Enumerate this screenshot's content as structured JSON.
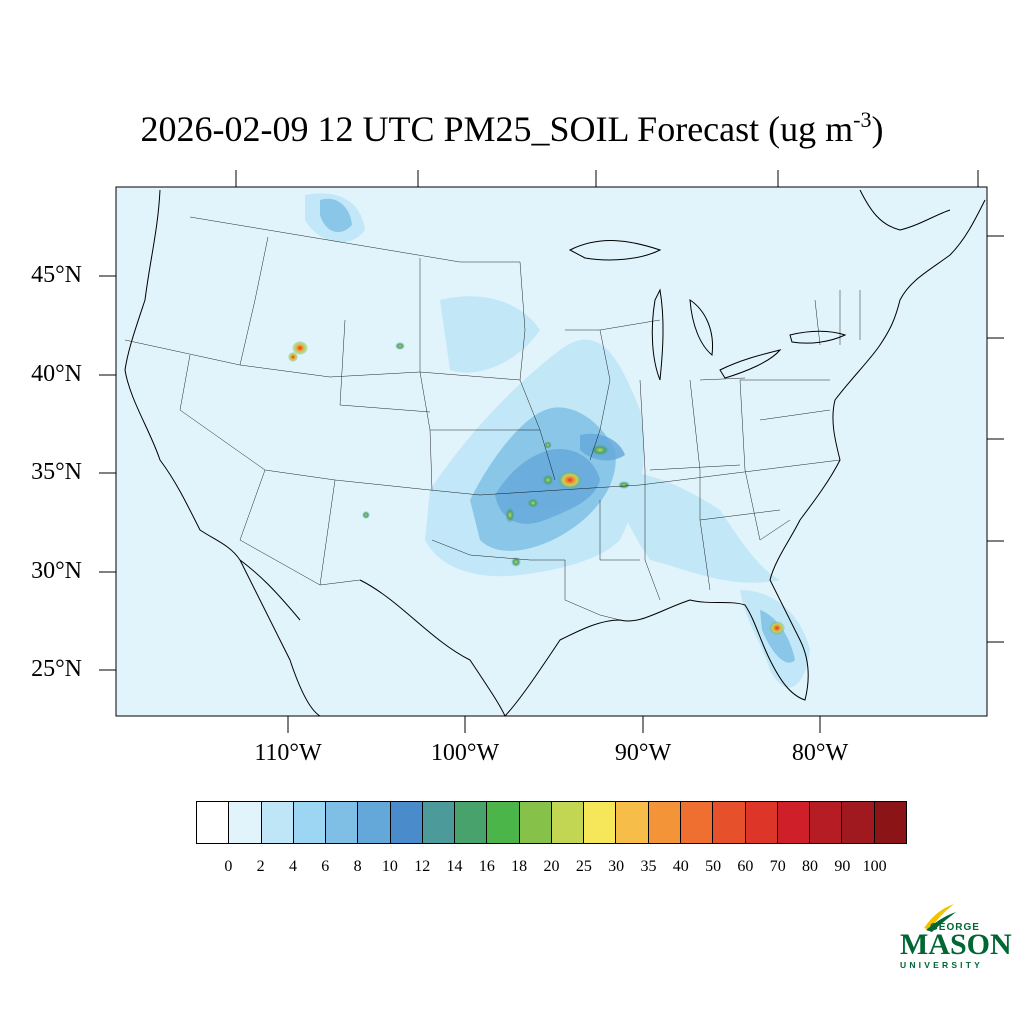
{
  "title": {
    "main": "2026-02-09 12 UTC PM25_SOIL Forecast (ug m",
    "superscript": "-3",
    "close": ")"
  },
  "latitude_labels": [
    "45°N",
    "40°N",
    "35°N",
    "30°N",
    "25°N"
  ],
  "longitude_labels": [
    "110°W",
    "100°W",
    "90°W",
    "80°W"
  ],
  "colorbar": {
    "labels": [
      "0",
      "2",
      "4",
      "6",
      "8",
      "10",
      "12",
      "14",
      "16",
      "18",
      "20",
      "25",
      "30",
      "35",
      "40",
      "50",
      "60",
      "70",
      "80",
      "90",
      "100"
    ],
    "colors": [
      "#ffffff",
      "#e1f3fb",
      "#bfe6f7",
      "#9dd6f2",
      "#80bfe5",
      "#64a8da",
      "#4a8ccb",
      "#4c9a9a",
      "#48a26c",
      "#4cb54a",
      "#86c24a",
      "#c3d654",
      "#f6e65a",
      "#f6bd48",
      "#f39438",
      "#ee6f2f",
      "#e6502a",
      "#dd3528",
      "#cf2029",
      "#b61c24",
      "#a0191e",
      "#8b1516"
    ]
  },
  "map": {
    "background_color": "#e1f3fb",
    "outline_color": "#000000"
  },
  "logo": {
    "top": "GEORGE",
    "middle": "MASON",
    "bottom": "UNIVERSITY",
    "color": "#006633",
    "accent": "#f2c200"
  }
}
